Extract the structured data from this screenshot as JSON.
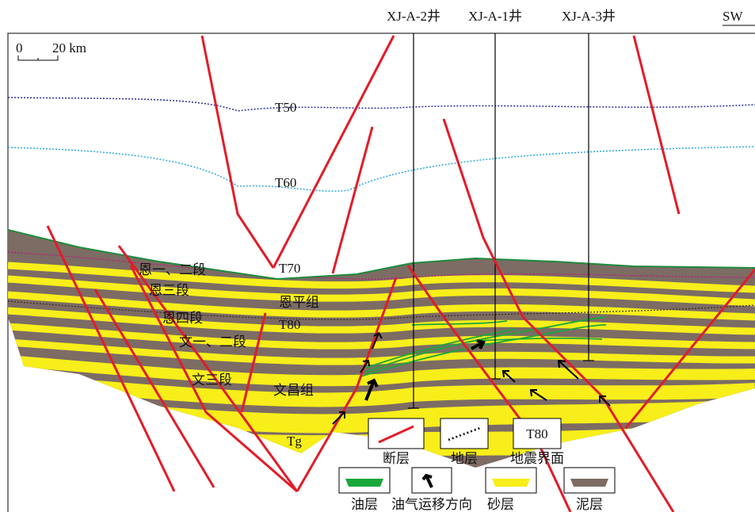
{
  "header": {
    "direction": "SW"
  },
  "wells": [
    {
      "label": "XJ-A-2井"
    },
    {
      "label": "XJ-A-1井"
    },
    {
      "label": "XJ-A-3井"
    }
  ],
  "scale": {
    "start": "0",
    "end": "20 km"
  },
  "horizons": [
    "T50",
    "T60",
    "T70",
    "T80",
    "Tg"
  ],
  "formations": [
    "恩一、二段",
    "恩三段",
    "恩四段",
    "恩平组",
    "文一、二段",
    "文三段",
    "文昌组"
  ],
  "legend": {
    "items": [
      {
        "label": "断层"
      },
      {
        "label": "地层"
      },
      {
        "sample": "T80",
        "label": "地震界面"
      },
      {
        "label": "油层"
      },
      {
        "label": "油气运移方向"
      },
      {
        "label": "砂层"
      },
      {
        "label": "泥层"
      }
    ]
  }
}
